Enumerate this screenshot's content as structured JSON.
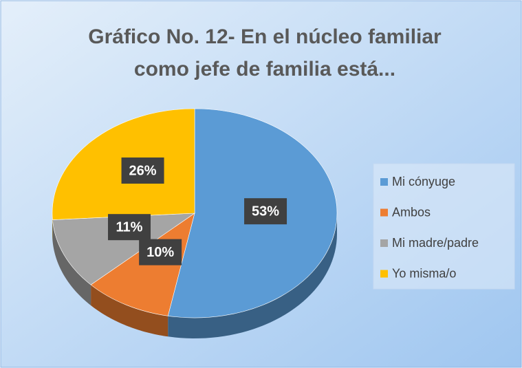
{
  "chart_data": {
    "type": "pie3d",
    "title": [
      "Gráfico No. 12- En el núcleo familiar",
      "como jefe de familia está..."
    ],
    "categories": [
      "Mi cónyuge",
      "Ambos",
      "Mi madre/padre",
      "Yo misma/o"
    ],
    "values": [
      53,
      10,
      11,
      26
    ],
    "value_labels": [
      "53%",
      "10%",
      "11%",
      "26%"
    ],
    "colors": [
      "#5b9bd5",
      "#ed7d31",
      "#a5a5a5",
      "#ffc000"
    ],
    "legend": "right"
  }
}
